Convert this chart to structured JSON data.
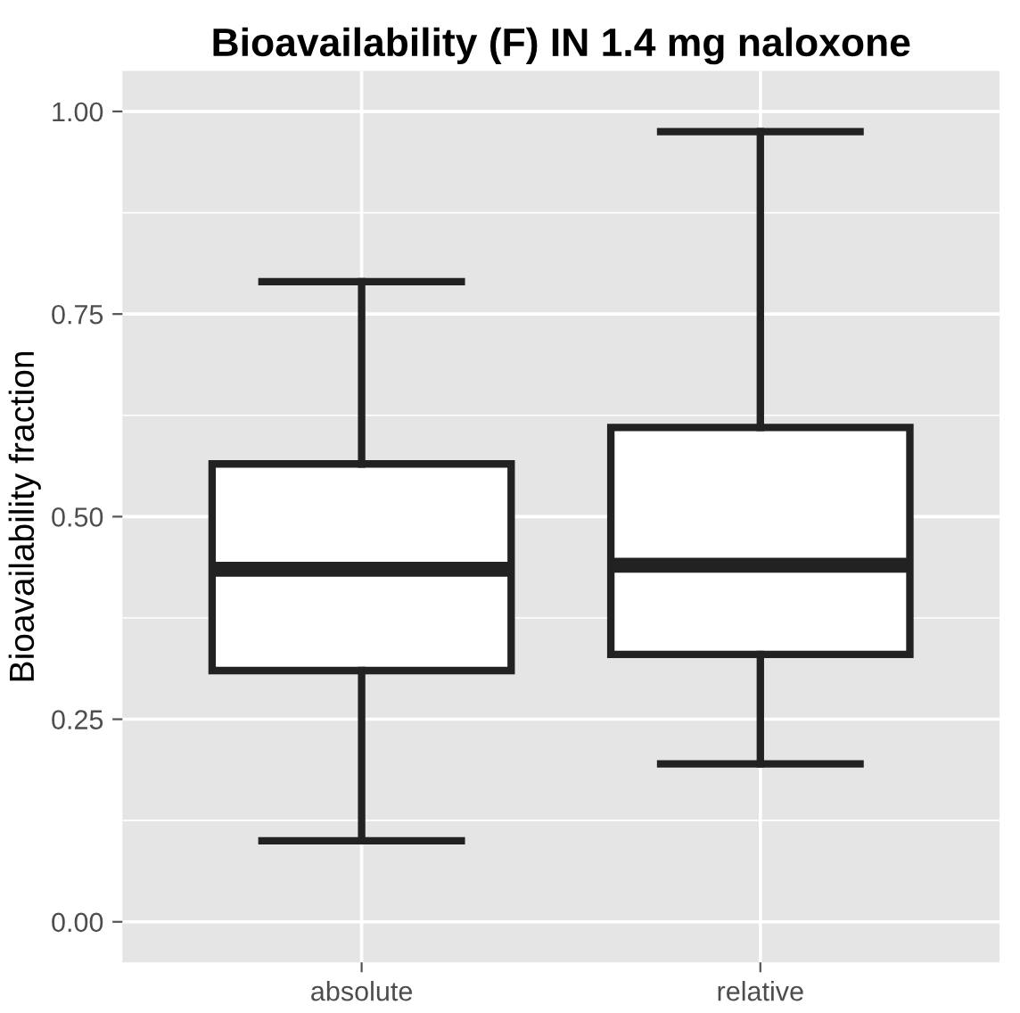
{
  "chart_data": {
    "type": "box",
    "title": "Bioavailability (F) IN 1.4 mg naloxone",
    "ylabel": "Bioavailability fraction",
    "categories": [
      "absolute",
      "relative"
    ],
    "boxes": [
      {
        "low": 0.1,
        "q1": 0.31,
        "median": 0.435,
        "q3": 0.565,
        "high": 0.79
      },
      {
        "low": 0.195,
        "q1": 0.33,
        "median": 0.44,
        "q3": 0.61,
        "high": 0.975
      }
    ],
    "color": "#ffffff",
    "ylim": [
      -0.05,
      1.05
    ],
    "yticks": [
      {
        "value": 0,
        "label": "0.00"
      },
      {
        "value": 0.25,
        "label": "0.25"
      },
      {
        "value": 0.5,
        "label": "0.50"
      },
      {
        "value": 0.75,
        "label": "0.75"
      },
      {
        "value": 1,
        "label": "1.00"
      }
    ],
    "grid": true,
    "legend": false
  }
}
